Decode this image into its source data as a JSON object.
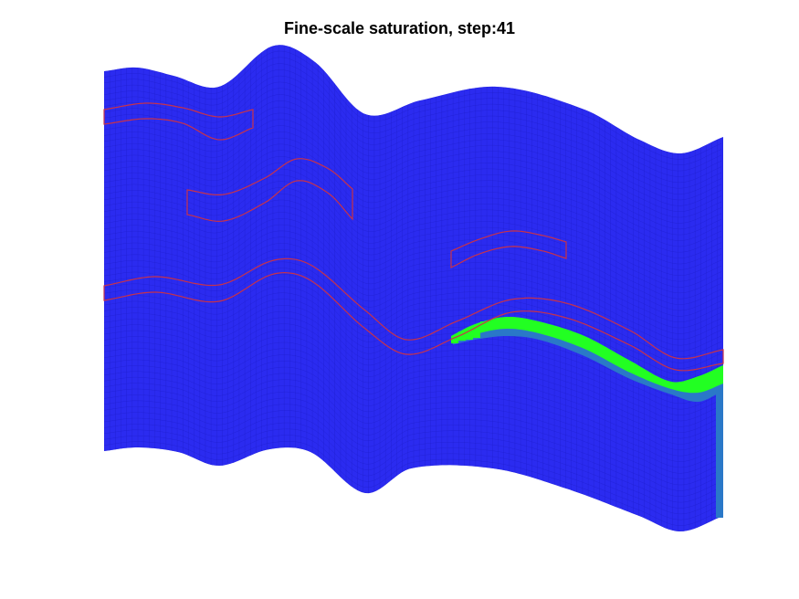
{
  "title": "Fine-scale saturation, step:41",
  "colors": {
    "background": "#ffffff",
    "water": "#2b2bf0",
    "grid_line": "#1e1ec8",
    "saturation_front": "#22ff22",
    "transition": "#2a78c8",
    "outline": "#c8324a"
  }
}
